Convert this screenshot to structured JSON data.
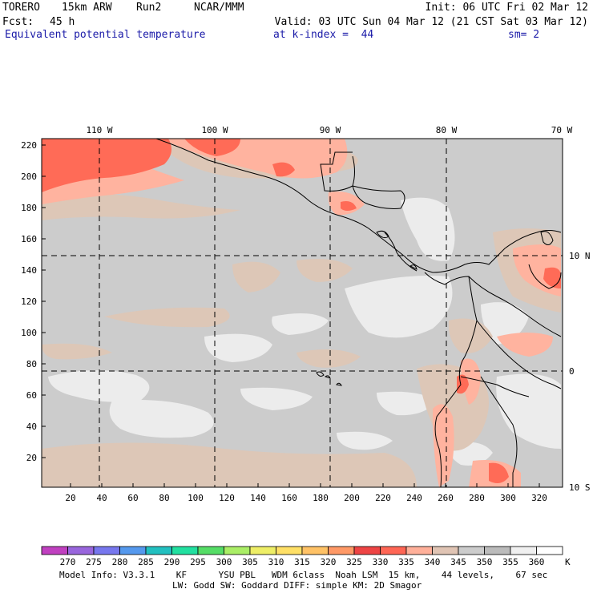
{
  "header": {
    "model": "TORERO",
    "resolution": "15km ARW",
    "run": "Run2",
    "institution": "NCAR/MMM",
    "init": "Init: 06 UTC Fri 02 Mar 12",
    "forecast_label": "Fcst:",
    "forecast_hour": "45 h",
    "valid": "Valid: 03 UTC Sun 04 Mar 12 (21 CST Sat 03 Mar 12)",
    "field": "Equivalent potential temperature",
    "level": "at k-index =  44",
    "smoothing": "sm= 2"
  },
  "map": {
    "lon_labels": [
      "110 W",
      "100 W",
      "90 W",
      "80 W",
      "70 W"
    ],
    "lat_labels": [
      "10 N",
      "0",
      "10 S"
    ],
    "y_ticks": [
      "220",
      "200",
      "180",
      "160",
      "140",
      "120",
      "100",
      "80",
      "60",
      "40",
      "20"
    ],
    "x_ticks": [
      "20",
      "40",
      "60",
      "80",
      "100",
      "120",
      "140",
      "160",
      "180",
      "200",
      "220",
      "240",
      "260",
      "280",
      "300",
      "320"
    ]
  },
  "colorbar": {
    "levels": [
      "270",
      "275",
      "280",
      "285",
      "290",
      "295",
      "300",
      "305",
      "310",
      "315",
      "320",
      "325",
      "330",
      "335",
      "340",
      "345",
      "350",
      "355",
      "360"
    ],
    "unit": "K",
    "colors": [
      "#c040c0",
      "#9966dd",
      "#7777ee",
      "#5599ee",
      "#22c0c0",
      "#22e0a0",
      "#55dd66",
      "#aaee66",
      "#eeee66",
      "#ffe066",
      "#ffc266",
      "#ff9966",
      "#ee4444",
      "#ff6655",
      "#ffb09a",
      "#e0c4b4",
      "#cccccc",
      "#bbbbbb",
      "#f0f0f0",
      "#ffffff"
    ]
  },
  "footer": {
    "line1": "Model Info: V3.3.1    KF      YSU PBL   WDM 6class  Noah LSM  15 km,    44 levels,    67 sec",
    "line2": "LW: Godd SW: Goddard DIFF: simple KM: 2D Smagor"
  }
}
